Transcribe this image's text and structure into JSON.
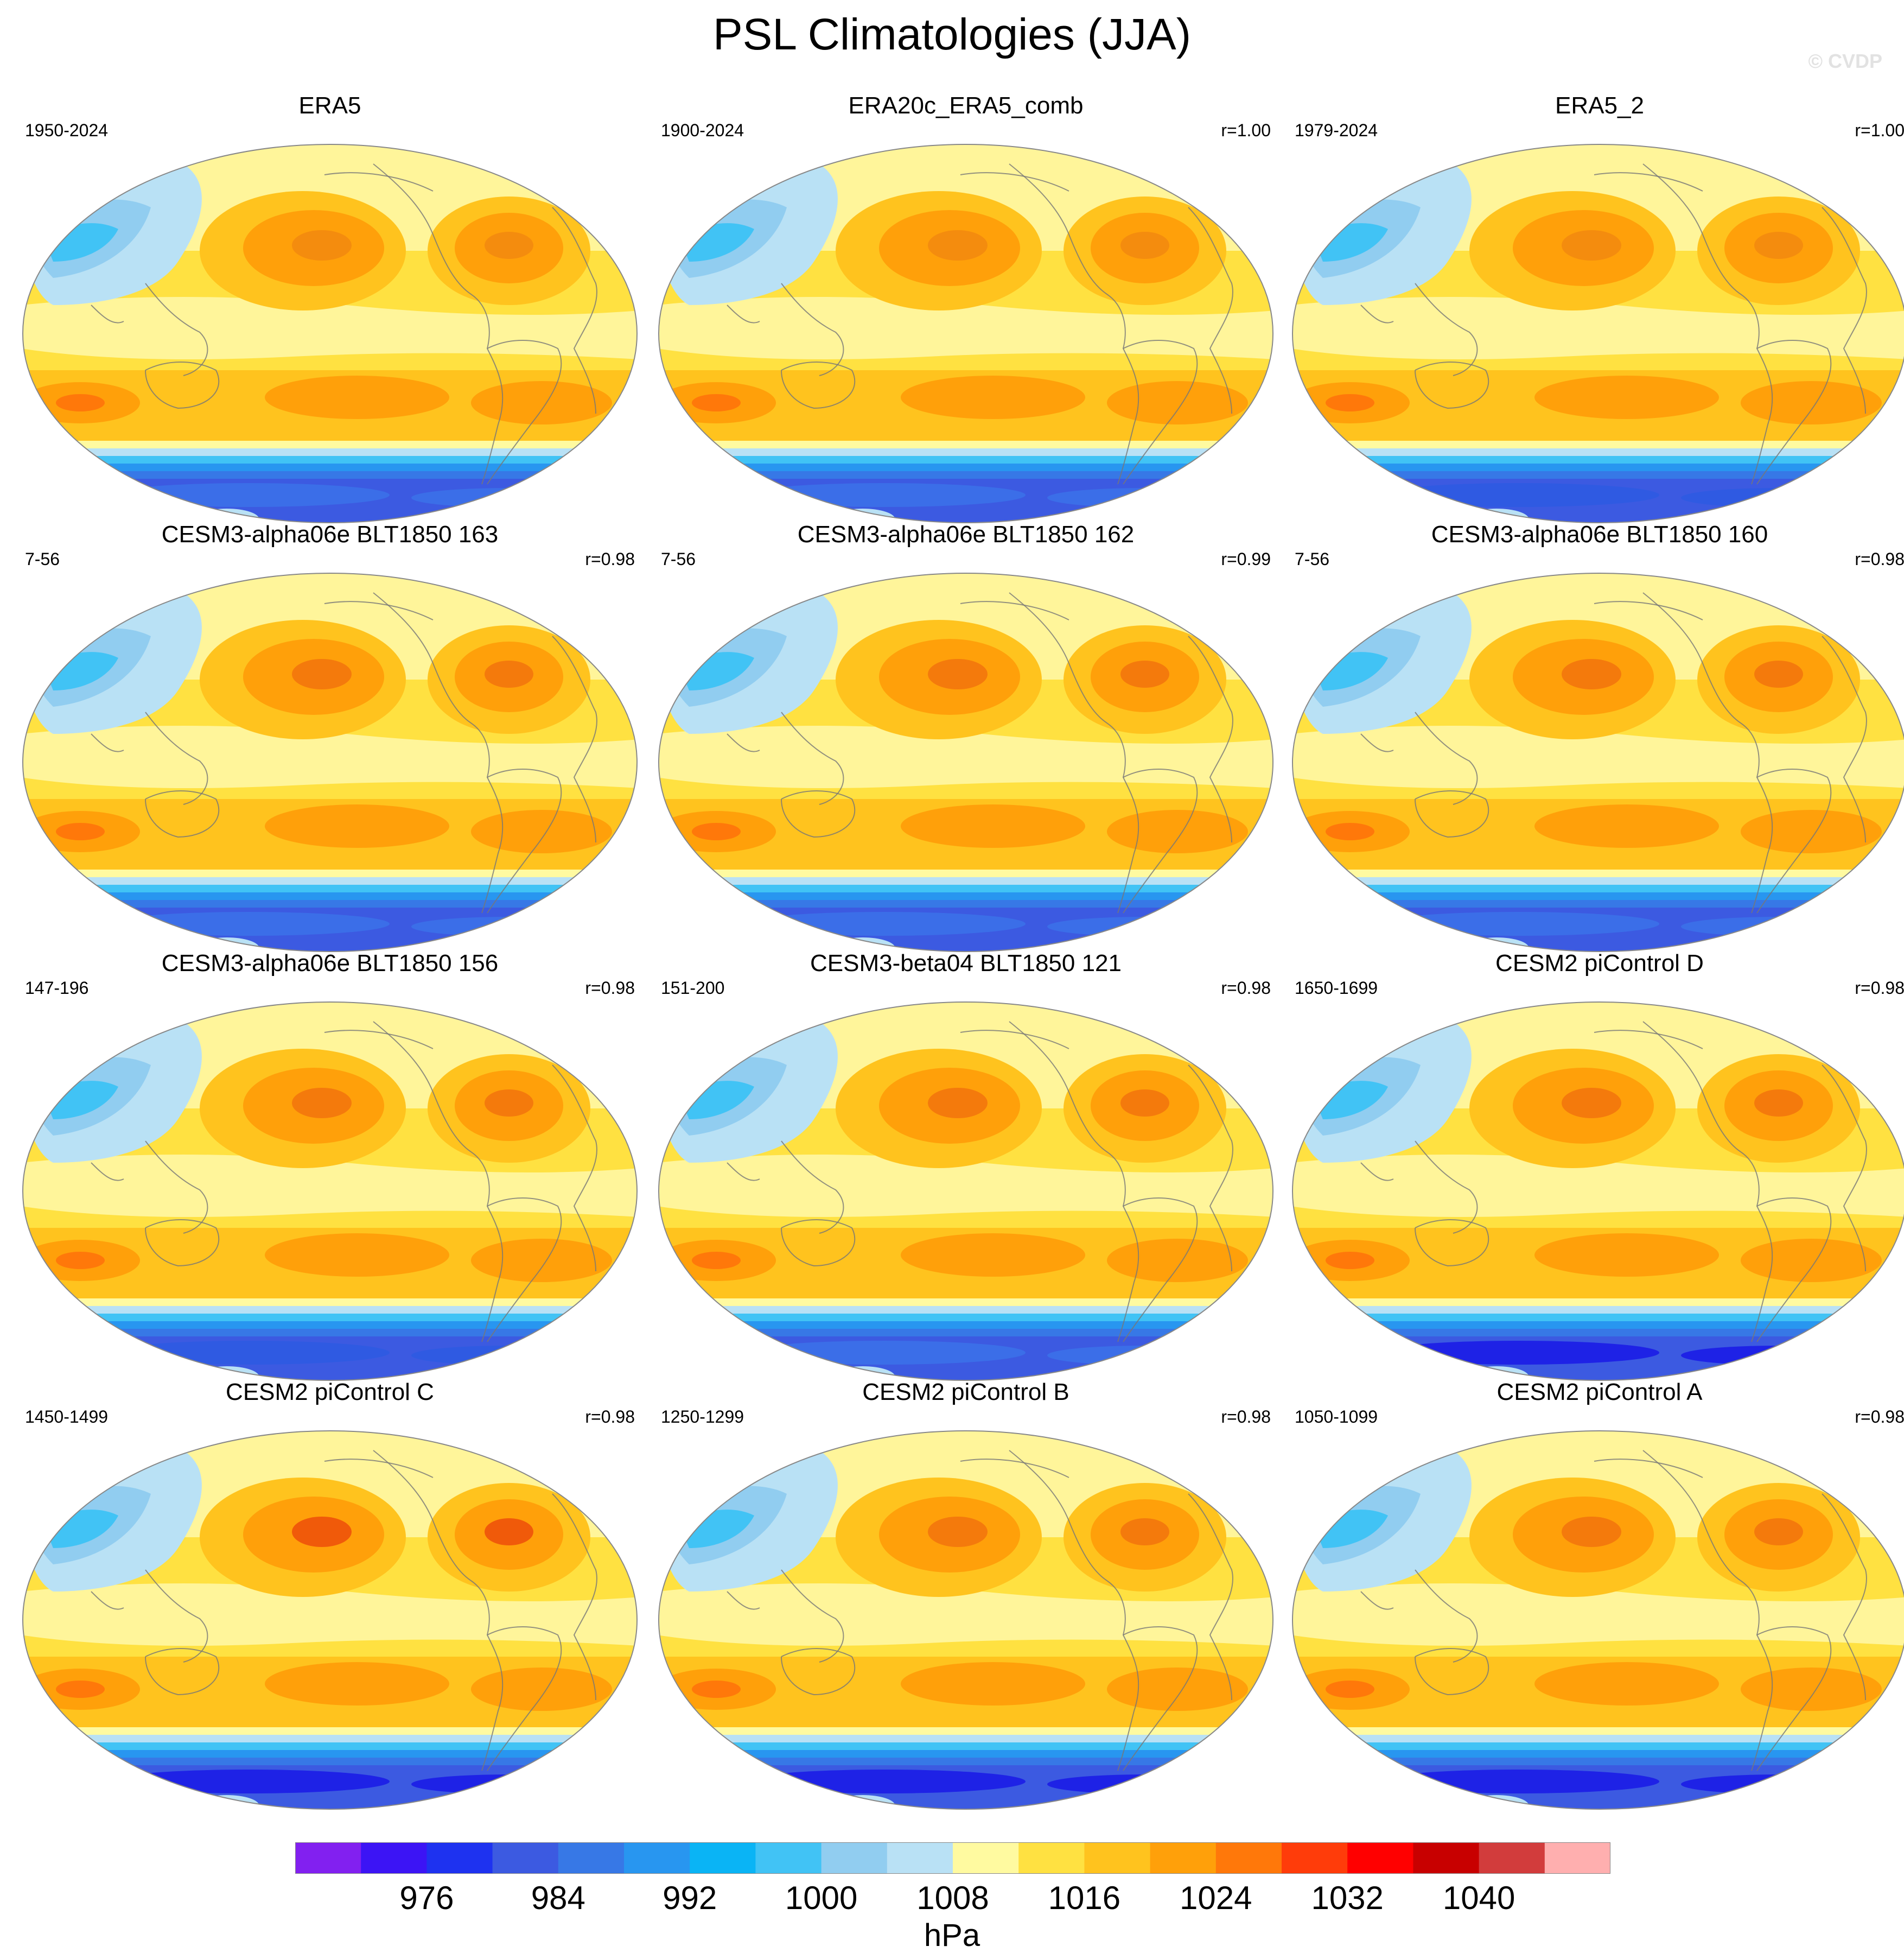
{
  "title": "PSL Climatologies (JJA)",
  "watermark": "© CVDP",
  "panels": [
    {
      "name": "ERA5",
      "period": "1950-2024",
      "corr": "",
      "sh_low": "#3b6ee8",
      "nh_high": "#f48c0e"
    },
    {
      "name": "ERA20c_ERA5_comb",
      "period": "1900-2024",
      "corr": "r=1.00",
      "sh_low": "#3b6ee8",
      "nh_high": "#f48c0e"
    },
    {
      "name": "ERA5_2",
      "period": "1979-2024",
      "corr": "r=1.00",
      "sh_low": "#2f5ae2",
      "nh_high": "#f48c0e"
    },
    {
      "name": "CESM3-alpha06e BLT1850 163",
      "period": "7-56",
      "corr": "r=0.98",
      "sh_low": "#3b6ee8",
      "nh_high": "#f47a0c"
    },
    {
      "name": "CESM3-alpha06e BLT1850 162",
      "period": "7-56",
      "corr": "r=0.99",
      "sh_low": "#3b6ee8",
      "nh_high": "#f47a0c"
    },
    {
      "name": "CESM3-alpha06e BLT1850 160",
      "period": "7-56",
      "corr": "r=0.98",
      "sh_low": "#3b6ee8",
      "nh_high": "#f47a0c"
    },
    {
      "name": "CESM3-alpha06e BLT1850 156",
      "period": "147-196",
      "corr": "r=0.98",
      "sh_low": "#2f5ae2",
      "nh_high": "#f47a0c"
    },
    {
      "name": "CESM3-beta04 BLT1850 121",
      "period": "151-200",
      "corr": "r=0.98",
      "sh_low": "#3b6ee8",
      "nh_high": "#f47a0c"
    },
    {
      "name": "CESM2 piControl D",
      "period": "1650-1699",
      "corr": "r=0.98",
      "sh_low": "#1e22e6",
      "nh_high": "#f47a0c"
    },
    {
      "name": "CESM2 piControl C",
      "period": "1450-1499",
      "corr": "r=0.98",
      "sh_low": "#1e22e6",
      "nh_high": "#f05a0a"
    },
    {
      "name": "CESM2 piControl B",
      "period": "1250-1299",
      "corr": "r=0.98",
      "sh_low": "#1e22e6",
      "nh_high": "#f47a0c"
    },
    {
      "name": "CESM2 piControl A",
      "period": "1050-1099",
      "corr": "r=0.98",
      "sh_low": "#1e22e6",
      "nh_high": "#f47a0c"
    }
  ],
  "colorbar": {
    "unit": "hPa",
    "tick_labels": [
      "976",
      "984",
      "992",
      "1000",
      "1008",
      "1016",
      "1024",
      "1032",
      "1040"
    ],
    "colors": [
      "#8220f0",
      "#3c14f5",
      "#1e32f0",
      "#3c5ae1",
      "#3778e6",
      "#2896f0",
      "#0ab4f5",
      "#41c3f5",
      "#91cdf0",
      "#b9e1f5",
      "#fffaa0",
      "#ffe141",
      "#ffc31e",
      "#ffa00a",
      "#ff780a",
      "#ff3c0a",
      "#ff0000",
      "#c80000",
      "#d23c3c",
      "#ffafaf"
    ]
  }
}
